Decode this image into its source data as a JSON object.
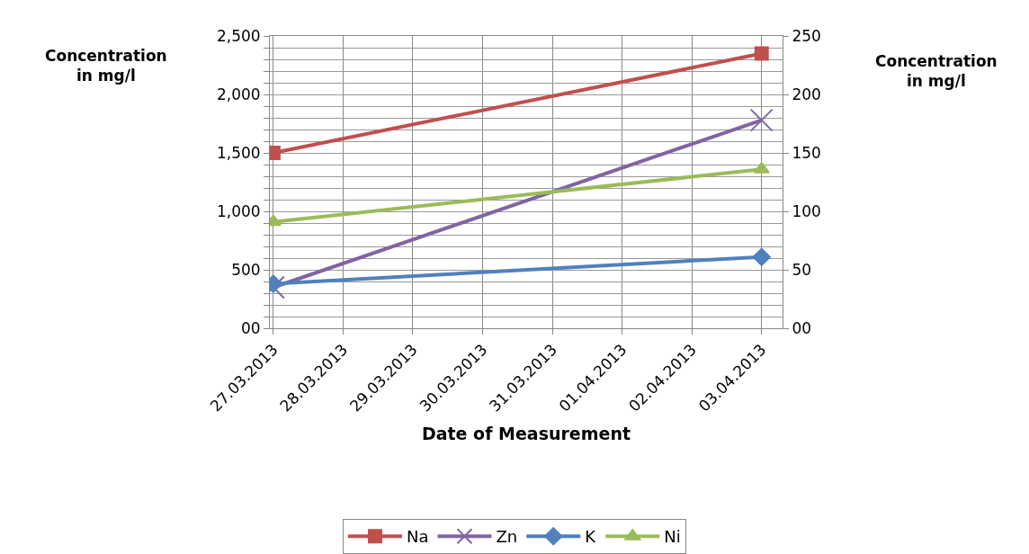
{
  "chart_data": {
    "type": "line",
    "xlabel": "Date of Measurement",
    "ylabel": "Concentration in mg/l",
    "y2label": "Concentration in mg/l",
    "categories": [
      "27.03.2013",
      "28.03.2013",
      "29.03.2013",
      "30.03.2013",
      "31.03.2013",
      "01.04.2013",
      "02.04.2013",
      "03.04.2013"
    ],
    "series": [
      {
        "name": "Na",
        "color": "#c0504d",
        "marker": "square",
        "values": [
          1500,
          null,
          null,
          null,
          null,
          null,
          null,
          2350
        ]
      },
      {
        "name": "Zn",
        "color": "#8064a2",
        "marker": "cross",
        "axis": "y2",
        "values": [
          35,
          null,
          null,
          null,
          null,
          null,
          null,
          178
        ]
      },
      {
        "name": "K",
        "color": "#4f81bd",
        "marker": "diamond",
        "axis": "y2",
        "values": [
          38,
          null,
          null,
          null,
          null,
          null,
          null,
          61
        ]
      },
      {
        "name": "Ni",
        "color": "#9bbb59",
        "marker": "triangle",
        "axis": "y2",
        "values": [
          91,
          null,
          null,
          null,
          null,
          null,
          null,
          136
        ]
      }
    ],
    "ylim": [
      0,
      2500
    ],
    "yticks": [
      {
        "value": 0,
        "label": "00"
      },
      {
        "value": 100,
        "label": null
      },
      {
        "value": 200,
        "label": null
      },
      {
        "value": 300,
        "label": null
      },
      {
        "value": 400,
        "label": null
      },
      500,
      {
        "value": 600,
        "label": null
      },
      {
        "value": 700,
        "label": null
      },
      {
        "value": 800,
        "label": null
      },
      {
        "value": 900,
        "label": null
      },
      {
        "value": 1000,
        "label": "1,000"
      },
      {
        "value": 1100,
        "label": null
      },
      {
        "value": 1200,
        "label": null
      },
      {
        "value": 1300,
        "label": null
      },
      {
        "value": 1400,
        "label": null
      },
      {
        "value": 1500,
        "label": "1,500"
      },
      {
        "value": 1600,
        "label": null
      },
      {
        "value": 1700,
        "label": null
      },
      {
        "value": 1800,
        "label": null
      },
      {
        "value": 1900,
        "label": null
      },
      {
        "value": 2000,
        "label": "2,000"
      },
      {
        "value": 2100,
        "label": null
      },
      {
        "value": 2200,
        "label": null
      },
      {
        "value": 2300,
        "label": null
      },
      {
        "value": 2400,
        "label": null
      },
      {
        "value": 2500,
        "label": "2,500"
      }
    ],
    "y2lim": [
      0,
      250
    ],
    "y2ticks": [
      {
        "value": 0,
        "label": "00"
      },
      50,
      100,
      150,
      200,
      250
    ],
    "grid": true,
    "legend": "bottom",
    "line_style": "solid"
  }
}
